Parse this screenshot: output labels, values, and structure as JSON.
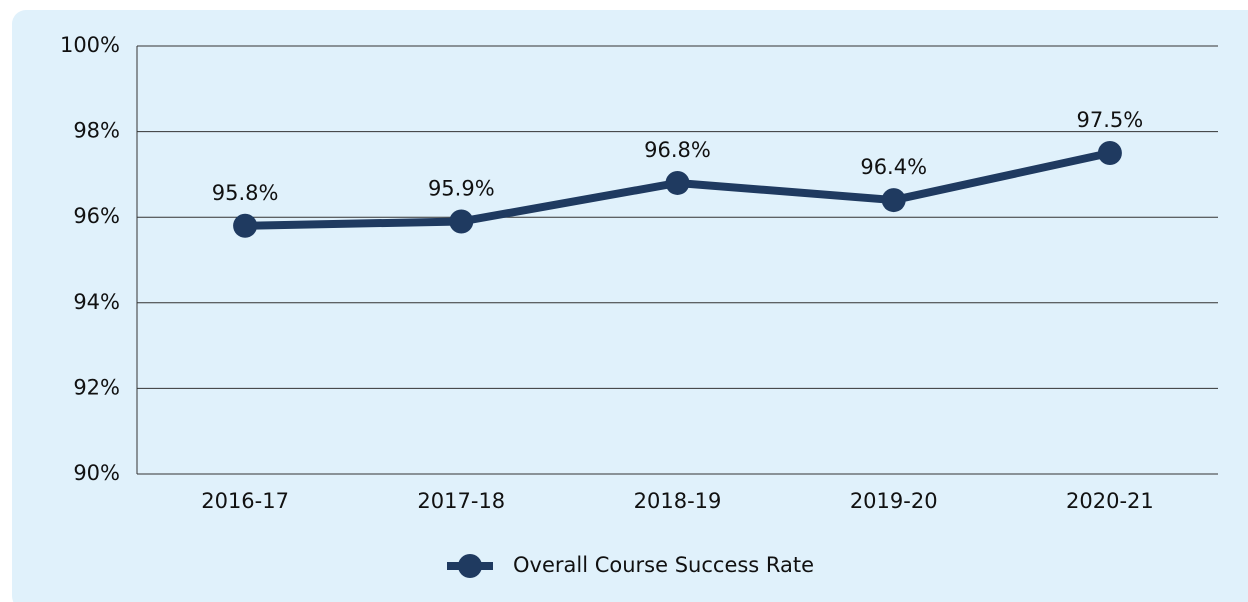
{
  "chart_data": {
    "type": "line",
    "categories": [
      "2016-17",
      "2017-18",
      "2018-19",
      "2019-20",
      "2020-21"
    ],
    "series": [
      {
        "name": "Overall Course Success Rate",
        "color": "#1f3a60",
        "values": [
          95.8,
          95.9,
          96.8,
          96.4,
          97.5
        ],
        "value_labels": [
          "95.8%",
          "95.9%",
          "96.8%",
          "96.4%",
          "97.5%"
        ]
      }
    ],
    "ylim": [
      90,
      100
    ],
    "yticks": [
      {
        "value": 90,
        "label": "90%"
      },
      {
        "value": 92,
        "label": "92%"
      },
      {
        "value": 94,
        "label": "94%"
      },
      {
        "value": 96,
        "label": "96%"
      },
      {
        "value": 98,
        "label": "98%"
      },
      {
        "value": 100,
        "label": "100%"
      }
    ],
    "grid": true,
    "legend": "bottom"
  }
}
